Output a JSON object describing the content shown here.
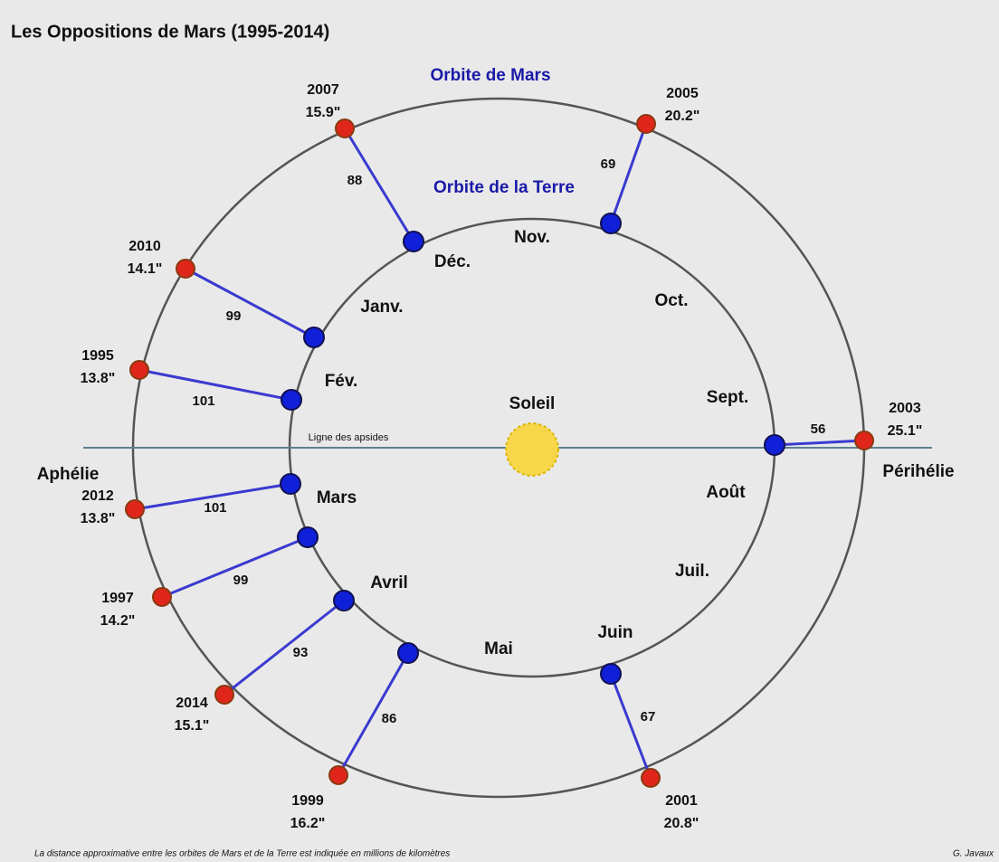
{
  "title": "Les Oppositions de Mars (1995-2014)",
  "orbit_labels": {
    "mars": "Orbite de Mars",
    "earth": "Orbite de la Terre"
  },
  "sun": "Soleil",
  "apsides": {
    "line": "Ligne des apsides",
    "aphelion": "Aphélie",
    "perihelion": "Périhélie"
  },
  "months": [
    "Janv.",
    "Fév.",
    "Mars",
    "Avril",
    "Mai",
    "Juin",
    "Juil.",
    "Août",
    "Sept.",
    "Oct.",
    "Nov.",
    "Déc."
  ],
  "oppositions": [
    {
      "year": "2007",
      "diameter": "15.9\"",
      "distance": 88
    },
    {
      "year": "2005",
      "diameter": "20.2\"",
      "distance": 69
    },
    {
      "year": "2010",
      "diameter": "14.1\"",
      "distance": 99
    },
    {
      "year": "1995",
      "diameter": "13.8\"",
      "distance": 101
    },
    {
      "year": "2003",
      "diameter": "25.1\"",
      "distance": 56
    },
    {
      "year": "2012",
      "diameter": "13.8\"",
      "distance": 101
    },
    {
      "year": "1997",
      "diameter": "14.2\"",
      "distance": 99
    },
    {
      "year": "2014",
      "diameter": "15.1\"",
      "distance": 93
    },
    {
      "year": "1999",
      "diameter": "16.2\"",
      "distance": 86
    },
    {
      "year": "2001",
      "diameter": "20.8\"",
      "distance": 67
    }
  ],
  "footer": {
    "note": "La distance approximative entre les orbites de Mars et de la Terre est indiquée en millions de kilomètres",
    "author": "G. Javaux"
  }
}
